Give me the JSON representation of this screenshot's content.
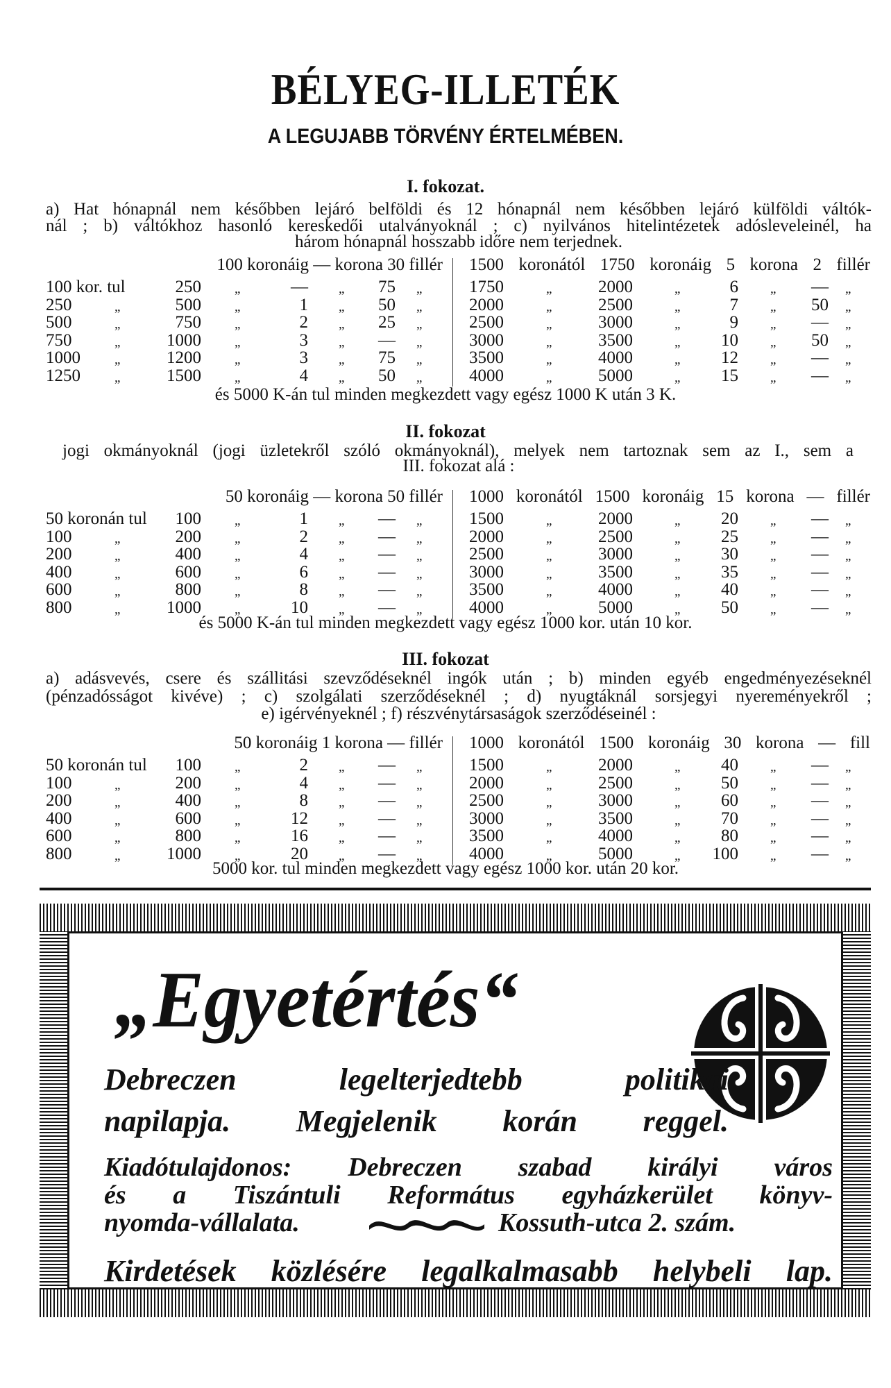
{
  "header": {
    "title": "BÉLYEG-ILLETÉK",
    "subtitle": "A LEGUJABB TÖRVÉNY ÉRTELMÉBEN."
  },
  "ditto": "„",
  "sections": [
    {
      "title": "I. fokozat.",
      "lines": [
        "a) Hat hónapnál nem későbben lejáró belföldi és 12 hónapnál nem későbben lejáró külföldi váltók-",
        "nál ; b) váltókhoz hasonló kereskedői utalványoknál ; c) nyilvános hitelintézetek adósleveleinél, ha",
        "három hónapnál hosszabb időre nem terjednek."
      ],
      "header_left": "100 koronáig — korona 30 fillér",
      "header_right": "1500 koronától 1750 koronáig 5 korona 2 fillér",
      "rows": [
        {
          "l": [
            "100 kor. tul",
            "250",
            "—",
            "75"
          ],
          "r": [
            "1750",
            "2000",
            "6",
            "—"
          ]
        },
        {
          "l": [
            "250",
            "500",
            "1",
            "50"
          ],
          "r": [
            "2000",
            "2500",
            "7",
            "50"
          ]
        },
        {
          "l": [
            "500",
            "750",
            "2",
            "25"
          ],
          "r": [
            "2500",
            "3000",
            "9",
            "—"
          ]
        },
        {
          "l": [
            "750",
            "1000",
            "3",
            "—"
          ],
          "r": [
            "3000",
            "3500",
            "10",
            "50"
          ]
        },
        {
          "l": [
            "1000",
            "1200",
            "3",
            "75"
          ],
          "r": [
            "3500",
            "4000",
            "12",
            "—"
          ]
        },
        {
          "l": [
            "1250",
            "1500",
            "4",
            "50"
          ],
          "r": [
            "4000",
            "5000",
            "15",
            "—"
          ]
        }
      ],
      "footnote": "és 5000 K-án tul minden megkezdett vagy egész 1000 K után 3 K."
    },
    {
      "title": "II. fokozat",
      "lines": [
        "jogi okmányoknál (jogi üzletekről szóló okmányoknál), melyek nem tartoznak sem az I., sem a",
        "III. fokozat alá :"
      ],
      "header_left": "50 koronáig — korona 50 fillér",
      "header_right": "1000 koronától 1500 koronáig 15 korona — fillér",
      "rows": [
        {
          "l": [
            "50 koronán tul",
            "100",
            "1",
            "—"
          ],
          "r": [
            "1500",
            "2000",
            "20",
            "—"
          ]
        },
        {
          "l": [
            "100",
            "200",
            "2",
            "—"
          ],
          "r": [
            "2000",
            "2500",
            "25",
            "—"
          ]
        },
        {
          "l": [
            "200",
            "400",
            "4",
            "—"
          ],
          "r": [
            "2500",
            "3000",
            "30",
            "—"
          ]
        },
        {
          "l": [
            "400",
            "600",
            "6",
            "—"
          ],
          "r": [
            "3000",
            "3500",
            "35",
            "—"
          ]
        },
        {
          "l": [
            "600",
            "800",
            "8",
            "—"
          ],
          "r": [
            "3500",
            "4000",
            "40",
            "—"
          ]
        },
        {
          "l": [
            "800",
            "1000",
            "10",
            "—"
          ],
          "r": [
            "4000",
            "5000",
            "50",
            "—"
          ]
        }
      ],
      "footnote": "és 5000 K-án tul minden megkezdett vagy egész 1000 kor. után 10 kor."
    },
    {
      "title": "III. fokozat",
      "lines": [
        "a) adásvevés, csere és szállitási szevződéseknél ingók után ; b) minden egyéb engedményezéseknél",
        "(pénzadósságot kivéve) ; c) szolgálati szerződéseknél ; d) nyugtáknál sorsjegyi nyereményekről ;",
        "e) igérvényeknél ; f) részvénytársaságok szerződéseinél :"
      ],
      "header_left": "50 koronáig 1 korona — fillér",
      "header_right": "1000 koronától 1500 koronáig 30 korona — fill",
      "rows": [
        {
          "l": [
            "50 koronán tul",
            "100",
            "2",
            "—"
          ],
          "r": [
            "1500",
            "2000",
            "40",
            "—"
          ]
        },
        {
          "l": [
            "100",
            "200",
            "4",
            "—"
          ],
          "r": [
            "2000",
            "2500",
            "50",
            "—"
          ]
        },
        {
          "l": [
            "200",
            "400",
            "8",
            "—"
          ],
          "r": [
            "2500",
            "3000",
            "60",
            "—"
          ]
        },
        {
          "l": [
            "400",
            "600",
            "12",
            "—"
          ],
          "r": [
            "3000",
            "3500",
            "70",
            "—"
          ]
        },
        {
          "l": [
            "600",
            "800",
            "16",
            "—"
          ],
          "r": [
            "3500",
            "4000",
            "80",
            "—"
          ]
        },
        {
          "l": [
            "800",
            "1000",
            "20",
            "—"
          ],
          "r": [
            "4000",
            "5000",
            "100",
            "—"
          ]
        }
      ],
      "footnote": "5000 kor. tul minden megkezdett vagy egész 1000 kor. után 20 kor."
    }
  ],
  "ad": {
    "brand": "„Egyetértés“",
    "line1": "Debreczen legelterjedtebb politikai",
    "line2": "napilapja. Megjelenik korán reggel.",
    "line3": "Kiadótulajdonos: Debreczen szabad királyi város",
    "line4": "és a Tiszántuli Református egyházkerület könyv-",
    "line5a": "nyomda-vállalata.",
    "line5b": "Kossuth-utca 2. szám.",
    "line6": "Kirdetések közlésére legalkalmasabb helybeli lap.",
    "logo_icon": "ornamental-circle-logo",
    "ornament_icon": "wave-ornament"
  }
}
